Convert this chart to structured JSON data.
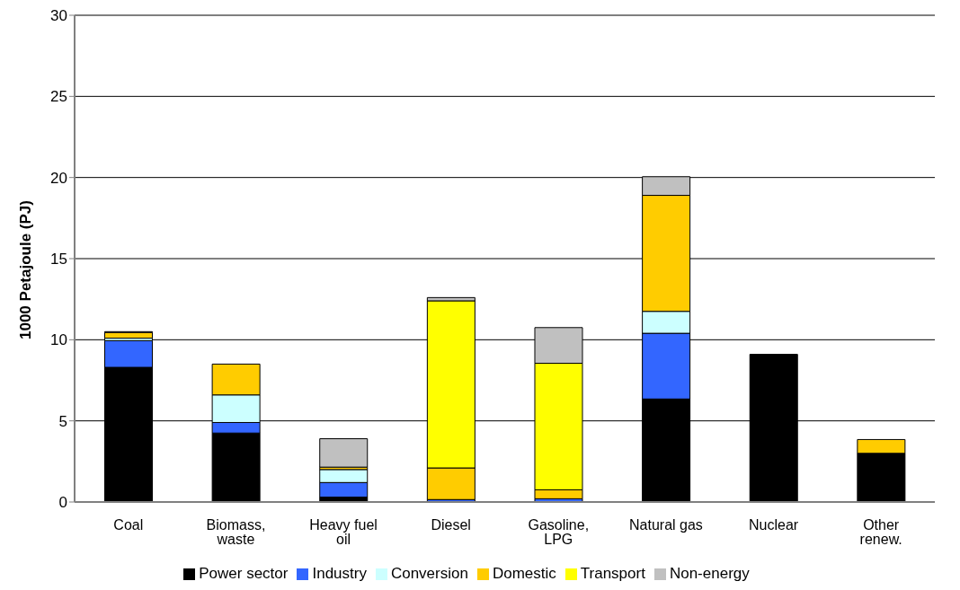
{
  "chart_data": {
    "type": "bar",
    "stacked": true,
    "ylabel": "1000 Petajoule (PJ)",
    "categories": [
      "Coal",
      "Biomass, waste",
      "Heavy fuel oil",
      "Diesel",
      "Gasoline, LPG",
      "Natural gas",
      "Nuclear",
      "Other renew."
    ],
    "series": [
      {
        "name": "Power sector",
        "color": "#000000",
        "values": [
          8.3,
          4.25,
          0.3,
          null,
          null,
          6.35,
          9.1,
          3.0
        ]
      },
      {
        "name": "Industry",
        "color": "#3366ff",
        "values": [
          1.65,
          0.65,
          0.9,
          0.15,
          0.2,
          4.05,
          0,
          0
        ]
      },
      {
        "name": "Conversion",
        "color": "#ccffff",
        "values": [
          0.15,
          1.7,
          0.8,
          0,
          0,
          1.35,
          0,
          0
        ]
      },
      {
        "name": "Domestic",
        "color": "#ffcc00",
        "values": [
          0.35,
          1.9,
          0.15,
          1.95,
          0.55,
          7.15,
          0,
          0.85
        ]
      },
      {
        "name": "Transport",
        "color": "#ffff00",
        "values": [
          0,
          0,
          0,
          10.3,
          7.8,
          0,
          0,
          0
        ]
      },
      {
        "name": "Non-energy",
        "color": "#c0c0c0",
        "values": [
          0.05,
          0,
          1.75,
          0.2,
          2.2,
          1.15,
          0,
          0
        ]
      }
    ],
    "ylim": [
      0,
      30
    ],
    "yticks": [
      0,
      5,
      10,
      15,
      20,
      25,
      30
    ],
    "grid": "y",
    "legend": "bottom"
  }
}
